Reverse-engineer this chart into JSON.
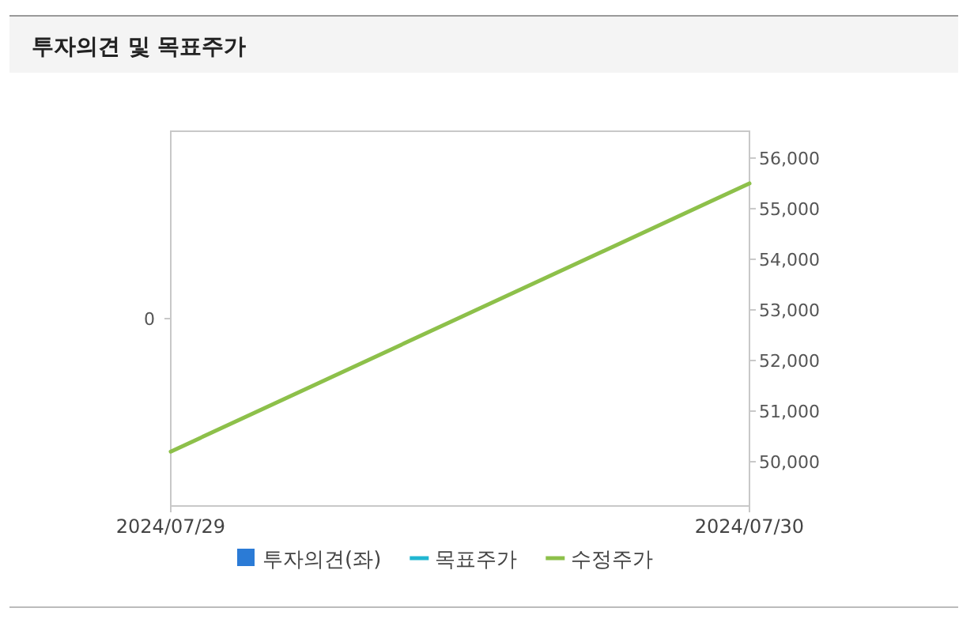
{
  "chart_data": {
    "type": "line",
    "title": "투자의견 및 목표주가",
    "x": [
      "2024-07-29",
      "2024-07-30"
    ],
    "xlim": [
      "2024-07-29",
      "2024-07-30"
    ],
    "xticks": [
      {
        "value": "2024-07-29",
        "label": "2024/07/29"
      },
      {
        "value": "2024-07-30",
        "label": "2024/07/30"
      }
    ],
    "annotations": [
      "0"
    ],
    "y2lim": [
      49125,
      56530
    ],
    "y2ticks": [
      {
        "value": 50000,
        "label": "50,000"
      },
      {
        "value": 51000,
        "label": "51,000"
      },
      {
        "value": 52000,
        "label": "52,000"
      },
      {
        "value": 53000,
        "label": "53,000"
      },
      {
        "value": 54000,
        "label": "54,000"
      },
      {
        "value": 55000,
        "label": "55,000"
      },
      {
        "value": 56000,
        "label": "56,000"
      }
    ],
    "legend": "bottom",
    "marker": "none",
    "line_style": "solid",
    "series": [
      {
        "name": "투자의견(좌)",
        "type": "bar",
        "color": "#2b7bd6",
        "values": [
          null,
          null
        ]
      },
      {
        "name": "목표주가",
        "axis": "y2",
        "color": "#21b6d1",
        "values": [
          null,
          null
        ]
      },
      {
        "name": "수정주가",
        "axis": "y2",
        "color": "#8dc04a",
        "values": [
          50200,
          55500
        ]
      }
    ]
  }
}
